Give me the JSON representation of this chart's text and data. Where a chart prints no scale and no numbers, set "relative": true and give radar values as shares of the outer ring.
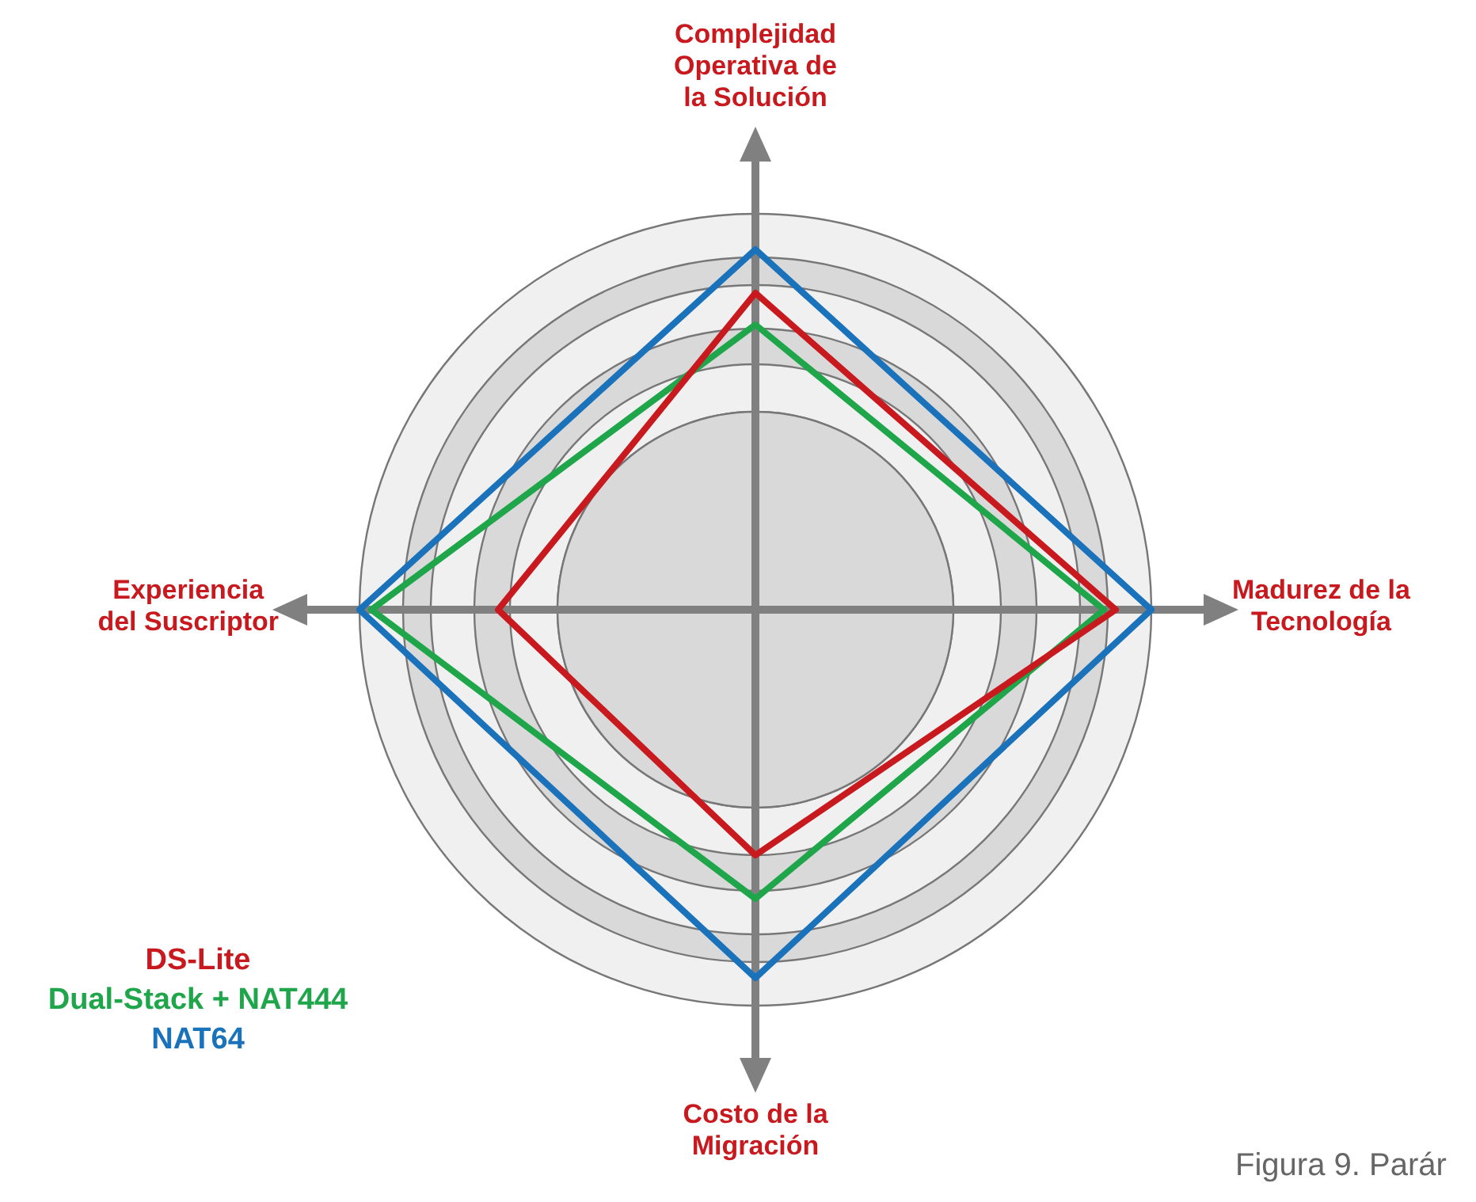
{
  "chart_data": {
    "type": "radar",
    "relative": true,
    "grid": true,
    "legend": "bottom left",
    "marker": "none",
    "categories": [
      "Complejidad Operativa de la Solución",
      "Madurez de la Tecnología",
      "Costo de la Migración",
      "Experiencia del Suscriptor"
    ],
    "series": [
      {
        "name": "DS-Lite",
        "color": "#c8191e",
        "values": [
          0.8,
          0.91,
          0.62,
          0.65
        ]
      },
      {
        "name": "Dual-Stack + NAT444",
        "color": "#1fa64a",
        "values": [
          0.72,
          0.88,
          0.73,
          0.97
        ]
      },
      {
        "name": "NAT64",
        "color": "#1a72bb",
        "values": [
          0.91,
          1.0,
          0.93,
          1.0
        ]
      }
    ],
    "annotations": [
      "Figura 9. Parár"
    ]
  }
}
